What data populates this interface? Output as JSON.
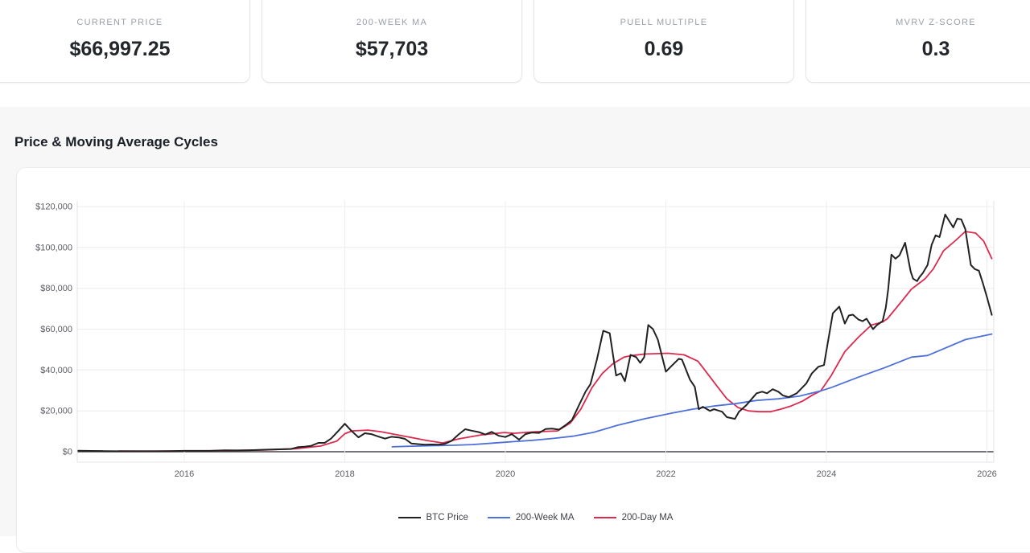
{
  "stat_cards": [
    {
      "label": "CURRENT PRICE",
      "value": "$66,997.25"
    },
    {
      "label": "200-WEEK MA",
      "value": "$57,703"
    },
    {
      "label": "PUELL MULTIPLE",
      "value": "0.69"
    },
    {
      "label": "MVRV Z-SCORE",
      "value": "0.3"
    }
  ],
  "section": {
    "title": "Price & Moving Average Cycles"
  },
  "colors": {
    "section_bg": "#f7f7f8",
    "gridline": "#ececef",
    "zero_line": "#47474d",
    "plot_border": "#e3e3e7",
    "tick_text": "#5a5c63",
    "btc_black": "#212121",
    "ma200w_blue": "#4e70d9",
    "ma200d_red": "#dc2a4e"
  },
  "chart_data": {
    "type": "line",
    "title": "Price & Moving Average Cycles",
    "xlabel": "",
    "ylabel": "",
    "xlim": [
      2014.68,
      2026.1
    ],
    "ylim": [
      0,
      120000
    ],
    "grid": true,
    "legend_position": "bottom",
    "x_tick_values": [
      2016,
      2018,
      2020,
      2022,
      2024,
      2026
    ],
    "x_tick_labels": [
      "2016",
      "2018",
      "2020",
      "2022",
      "2024",
      "2026"
    ],
    "y_tick_values": [
      0,
      20000,
      40000,
      60000,
      80000,
      100000,
      120000
    ],
    "y_tick_labels": [
      "$0",
      "$20,000",
      "$40,000",
      "$60,000",
      "$80,000",
      "$100,000",
      "$120,000"
    ],
    "series": [
      {
        "name": "BTC Price",
        "color": "#212121",
        "width": 2,
        "points": [
          [
            2014.68,
            460
          ],
          [
            2014.83,
            380
          ],
          [
            2015.0,
            300
          ],
          [
            2015.17,
            245
          ],
          [
            2015.33,
            235
          ],
          [
            2015.5,
            250
          ],
          [
            2015.67,
            235
          ],
          [
            2015.83,
            320
          ],
          [
            2016.0,
            430
          ],
          [
            2016.17,
            420
          ],
          [
            2016.33,
            450
          ],
          [
            2016.5,
            670
          ],
          [
            2016.67,
            625
          ],
          [
            2016.83,
            730
          ],
          [
            2017.0,
            965
          ],
          [
            2017.17,
            1190
          ],
          [
            2017.33,
            1350
          ],
          [
            2017.42,
            2300
          ],
          [
            2017.5,
            2480
          ],
          [
            2017.58,
            2870
          ],
          [
            2017.67,
            4340
          ],
          [
            2017.75,
            4370
          ],
          [
            2017.83,
            6470
          ],
          [
            2017.92,
            10200
          ],
          [
            2018.0,
            13700
          ],
          [
            2018.08,
            10300
          ],
          [
            2018.17,
            7050
          ],
          [
            2018.25,
            9050
          ],
          [
            2018.33,
            8600
          ],
          [
            2018.42,
            7400
          ],
          [
            2018.5,
            6400
          ],
          [
            2018.58,
            7300
          ],
          [
            2018.67,
            7000
          ],
          [
            2018.75,
            6300
          ],
          [
            2018.83,
            4000
          ],
          [
            2018.92,
            3700
          ],
          [
            2019.0,
            3450
          ],
          [
            2019.08,
            3550
          ],
          [
            2019.17,
            3450
          ],
          [
            2019.25,
            3900
          ],
          [
            2019.33,
            5300
          ],
          [
            2019.42,
            8500
          ],
          [
            2019.5,
            11000
          ],
          [
            2019.58,
            10300
          ],
          [
            2019.67,
            9600
          ],
          [
            2019.75,
            8400
          ],
          [
            2019.83,
            9700
          ],
          [
            2019.92,
            7800
          ],
          [
            2020.0,
            7200
          ],
          [
            2020.08,
            8600
          ],
          [
            2020.17,
            5900
          ],
          [
            2020.25,
            8600
          ],
          [
            2020.33,
            9400
          ],
          [
            2020.42,
            9200
          ],
          [
            2020.5,
            11100
          ],
          [
            2020.58,
            11300
          ],
          [
            2020.67,
            10800
          ],
          [
            2020.75,
            13000
          ],
          [
            2020.83,
            15500
          ],
          [
            2020.92,
            23000
          ],
          [
            2021.0,
            29500
          ],
          [
            2021.06,
            33000
          ],
          [
            2021.14,
            45000
          ],
          [
            2021.22,
            59200
          ],
          [
            2021.3,
            58000
          ],
          [
            2021.38,
            37300
          ],
          [
            2021.44,
            38400
          ],
          [
            2021.49,
            34500
          ],
          [
            2021.56,
            47400
          ],
          [
            2021.63,
            46300
          ],
          [
            2021.68,
            43500
          ],
          [
            2021.73,
            46300
          ],
          [
            2021.78,
            62000
          ],
          [
            2021.84,
            60000
          ],
          [
            2021.9,
            54900
          ],
          [
            2022.0,
            39200
          ],
          [
            2022.06,
            41600
          ],
          [
            2022.16,
            45500
          ],
          [
            2022.2,
            45100
          ],
          [
            2022.3,
            35300
          ],
          [
            2022.36,
            31800
          ],
          [
            2022.41,
            20800
          ],
          [
            2022.46,
            22000
          ],
          [
            2022.55,
            20000
          ],
          [
            2022.6,
            20800
          ],
          [
            2022.7,
            19600
          ],
          [
            2022.76,
            16900
          ],
          [
            2022.86,
            16100
          ],
          [
            2022.91,
            19600
          ],
          [
            2023.0,
            22700
          ],
          [
            2023.13,
            28600
          ],
          [
            2023.2,
            29400
          ],
          [
            2023.26,
            28600
          ],
          [
            2023.33,
            30600
          ],
          [
            2023.4,
            29400
          ],
          [
            2023.46,
            27500
          ],
          [
            2023.53,
            26700
          ],
          [
            2023.63,
            28600
          ],
          [
            2023.75,
            33500
          ],
          [
            2023.82,
            38400
          ],
          [
            2023.9,
            41600
          ],
          [
            2023.97,
            42400
          ],
          [
            2024.0,
            49400
          ],
          [
            2024.08,
            67800
          ],
          [
            2024.16,
            71000
          ],
          [
            2024.23,
            62700
          ],
          [
            2024.28,
            66700
          ],
          [
            2024.33,
            67100
          ],
          [
            2024.4,
            64700
          ],
          [
            2024.45,
            63900
          ],
          [
            2024.5,
            65100
          ],
          [
            2024.58,
            60000
          ],
          [
            2024.63,
            62000
          ],
          [
            2024.7,
            63900
          ],
          [
            2024.74,
            70600
          ],
          [
            2024.77,
            79600
          ],
          [
            2024.81,
            96500
          ],
          [
            2024.86,
            94500
          ],
          [
            2024.91,
            96100
          ],
          [
            2024.98,
            102300
          ],
          [
            2025.05,
            88200
          ],
          [
            2025.08,
            84700
          ],
          [
            2025.13,
            83500
          ],
          [
            2025.16,
            85500
          ],
          [
            2025.2,
            87400
          ],
          [
            2025.26,
            91400
          ],
          [
            2025.31,
            101200
          ],
          [
            2025.36,
            105900
          ],
          [
            2025.41,
            105100
          ],
          [
            2025.48,
            116100
          ],
          [
            2025.53,
            112900
          ],
          [
            2025.58,
            109800
          ],
          [
            2025.63,
            114100
          ],
          [
            2025.68,
            113700
          ],
          [
            2025.73,
            109000
          ],
          [
            2025.8,
            91400
          ],
          [
            2025.85,
            89400
          ],
          [
            2025.9,
            88600
          ],
          [
            2025.95,
            82400
          ],
          [
            2026.0,
            75700
          ],
          [
            2026.06,
            67000
          ]
        ]
      },
      {
        "name": "200-Week MA",
        "color": "#4e70d9",
        "width": 1.8,
        "points": [
          [
            2018.59,
            2400
          ],
          [
            2018.84,
            2700
          ],
          [
            2019.09,
            2950
          ],
          [
            2019.34,
            3150
          ],
          [
            2019.59,
            3500
          ],
          [
            2019.84,
            4200
          ],
          [
            2020.09,
            4900
          ],
          [
            2020.34,
            5600
          ],
          [
            2020.59,
            6500
          ],
          [
            2020.84,
            7600
          ],
          [
            2021.1,
            9500
          ],
          [
            2021.4,
            13000
          ],
          [
            2021.73,
            16100
          ],
          [
            2022.06,
            18800
          ],
          [
            2022.33,
            20800
          ],
          [
            2022.6,
            22400
          ],
          [
            2022.86,
            23500
          ],
          [
            2023.13,
            25100
          ],
          [
            2023.4,
            25900
          ],
          [
            2023.66,
            27200
          ],
          [
            2023.93,
            29800
          ],
          [
            2024.06,
            31400
          ],
          [
            2024.4,
            36500
          ],
          [
            2024.73,
            41200
          ],
          [
            2025.06,
            46300
          ],
          [
            2025.26,
            47100
          ],
          [
            2025.4,
            49400
          ],
          [
            2025.73,
            54900
          ],
          [
            2026.06,
            57600
          ]
        ]
      },
      {
        "name": "200-Day MA",
        "color": "#dc2a4e",
        "width": 1.8,
        "points": [
          [
            2015.18,
            300
          ],
          [
            2015.5,
            280
          ],
          [
            2016.0,
            380
          ],
          [
            2016.5,
            520
          ],
          [
            2017.0,
            850
          ],
          [
            2017.4,
            1500
          ],
          [
            2017.7,
            2800
          ],
          [
            2017.9,
            5200
          ],
          [
            2018.0,
            8800
          ],
          [
            2018.09,
            10200
          ],
          [
            2018.29,
            10600
          ],
          [
            2018.45,
            9800
          ],
          [
            2018.72,
            7800
          ],
          [
            2019.02,
            5500
          ],
          [
            2019.22,
            4300
          ],
          [
            2019.42,
            6300
          ],
          [
            2019.69,
            8200
          ],
          [
            2019.99,
            9400
          ],
          [
            2020.1,
            9000
          ],
          [
            2020.38,
            9800
          ],
          [
            2020.65,
            10200
          ],
          [
            2020.81,
            14100
          ],
          [
            2020.94,
            20800
          ],
          [
            2021.08,
            31400
          ],
          [
            2021.21,
            38400
          ],
          [
            2021.34,
            43100
          ],
          [
            2021.48,
            46300
          ],
          [
            2021.58,
            47100
          ],
          [
            2021.73,
            47800
          ],
          [
            2022.03,
            48200
          ],
          [
            2022.23,
            47400
          ],
          [
            2022.4,
            44300
          ],
          [
            2022.5,
            39200
          ],
          [
            2022.63,
            32500
          ],
          [
            2022.76,
            25900
          ],
          [
            2022.9,
            21600
          ],
          [
            2023.03,
            20000
          ],
          [
            2023.16,
            19600
          ],
          [
            2023.3,
            19600
          ],
          [
            2023.43,
            20800
          ],
          [
            2023.56,
            22400
          ],
          [
            2023.7,
            24700
          ],
          [
            2023.83,
            27800
          ],
          [
            2023.93,
            29800
          ],
          [
            2024.06,
            37300
          ],
          [
            2024.23,
            49000
          ],
          [
            2024.4,
            56100
          ],
          [
            2024.56,
            62000
          ],
          [
            2024.7,
            63500
          ],
          [
            2024.76,
            65100
          ],
          [
            2024.9,
            71800
          ],
          [
            2025.06,
            79600
          ],
          [
            2025.23,
            84700
          ],
          [
            2025.33,
            89400
          ],
          [
            2025.46,
            98400
          ],
          [
            2025.6,
            103100
          ],
          [
            2025.73,
            107800
          ],
          [
            2025.86,
            107000
          ],
          [
            2025.96,
            103100
          ],
          [
            2026.06,
            94500
          ]
        ]
      }
    ]
  }
}
